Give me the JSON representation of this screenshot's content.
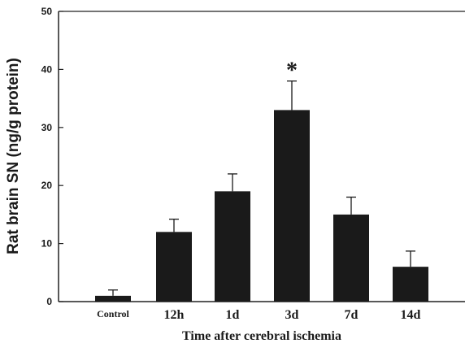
{
  "chart_data": {
    "type": "bar",
    "categories": [
      "Control",
      "12h",
      "1d",
      "3d",
      "7d",
      "14d"
    ],
    "values": [
      1,
      12,
      19,
      33,
      15,
      6
    ],
    "error_upper": [
      2,
      14.2,
      22,
      38,
      18,
      8.7
    ],
    "title": "",
    "xlabel": "Time after cerebral ischemia",
    "ylabel": "Rat brain SN (ng/g protein)",
    "ylim": [
      0,
      50
    ],
    "yticks": [
      "0",
      "10",
      "20",
      "30",
      "40",
      "50"
    ],
    "annotations": [
      {
        "category": "3d",
        "text": "*"
      }
    ],
    "grid": false,
    "colors": {
      "bar": "#1a1a1a",
      "axis": "#222222"
    }
  }
}
